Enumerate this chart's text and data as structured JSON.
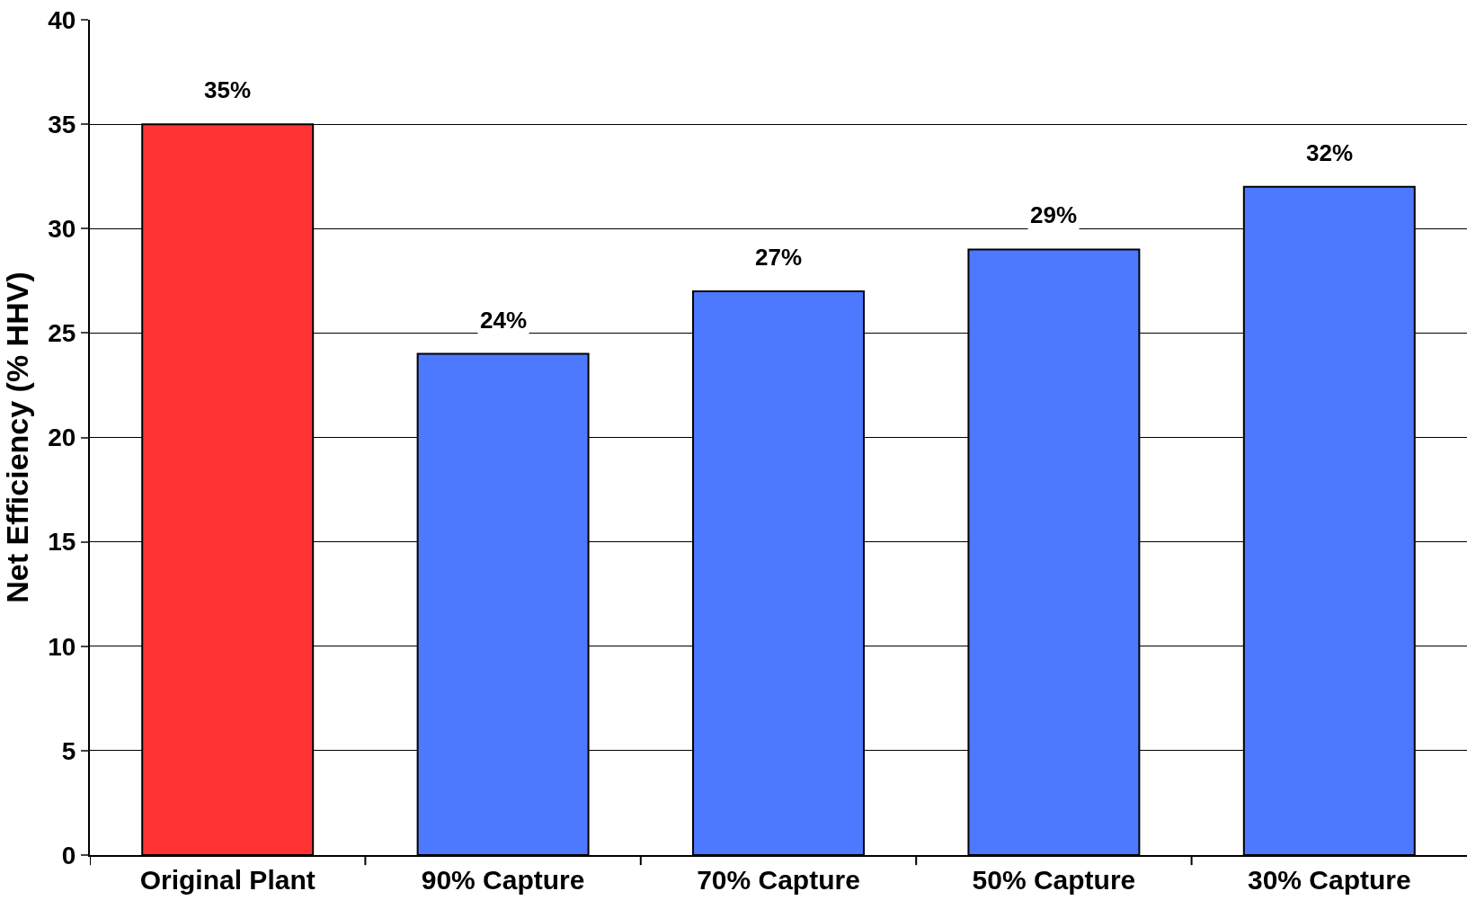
{
  "chart_data": {
    "type": "bar",
    "ylabel": "Net Efficiency (% HHV)",
    "categories": [
      "Original Plant",
      "90% Capture",
      "70% Capture",
      "50% Capture",
      "30% Capture"
    ],
    "values": [
      35,
      24,
      27,
      29,
      32
    ],
    "value_labels": [
      "35%",
      "24%",
      "27%",
      "29%",
      "32%"
    ],
    "colors": [
      "#ff3333",
      "#4d79ff",
      "#4d79ff",
      "#4d79ff",
      "#4d79ff"
    ],
    "ylim": [
      0,
      40
    ],
    "yticks": [
      0,
      5,
      10,
      15,
      20,
      25,
      30,
      35,
      40
    ],
    "grid": "y",
    "legend": false
  }
}
